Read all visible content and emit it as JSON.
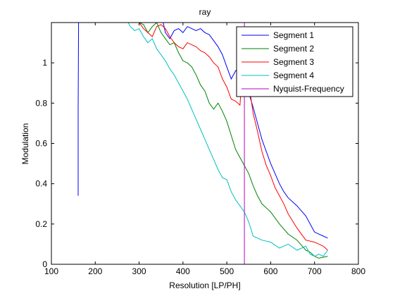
{
  "chart_data": {
    "type": "line",
    "title": "ray",
    "xlabel": "Resolution [LP/PH]",
    "ylabel": "Modulation",
    "xlim": [
      100,
      800
    ],
    "ylim": [
      0,
      1.2
    ],
    "xticks": [
      100,
      200,
      300,
      400,
      500,
      600,
      700,
      800
    ],
    "yticks": [
      0,
      0.2,
      0.4,
      0.6,
      0.8,
      1
    ],
    "grid": false,
    "legend_position": "top-right",
    "series": [
      {
        "name": "Segment 1",
        "color": "#0000ff",
        "points": [
          [
            161,
            0.34
          ],
          [
            161,
            0.77
          ],
          [
            162,
            1.2
          ],
          [
            355,
            1.2
          ],
          [
            360,
            1.15
          ],
          [
            370,
            1.12
          ],
          [
            380,
            1.16
          ],
          [
            390,
            1.17
          ],
          [
            400,
            1.15
          ],
          [
            410,
            1.18
          ],
          [
            420,
            1.17
          ],
          [
            430,
            1.16
          ],
          [
            440,
            1.17
          ],
          [
            450,
            1.15
          ],
          [
            460,
            1.14
          ],
          [
            470,
            1.11
          ],
          [
            480,
            1.08
          ],
          [
            490,
            1.04
          ],
          [
            500,
            0.98
          ],
          [
            510,
            0.92
          ],
          [
            520,
            0.96
          ],
          [
            530,
            0.98
          ],
          [
            540,
            0.92
          ],
          [
            550,
            0.85
          ],
          [
            560,
            0.78
          ],
          [
            570,
            0.7
          ],
          [
            580,
            0.62
          ],
          [
            590,
            0.56
          ],
          [
            600,
            0.5
          ],
          [
            610,
            0.45
          ],
          [
            620,
            0.4
          ],
          [
            630,
            0.36
          ],
          [
            640,
            0.33
          ],
          [
            660,
            0.29
          ],
          [
            680,
            0.24
          ],
          [
            700,
            0.16
          ],
          [
            720,
            0.14
          ],
          [
            730,
            0.13
          ]
        ]
      },
      {
        "name": "Segment 2",
        "color": "#008000",
        "points": [
          [
            270,
            1.2
          ],
          [
            300,
            1.2
          ],
          [
            310,
            1.19
          ],
          [
            320,
            1.15
          ],
          [
            330,
            1.18
          ],
          [
            340,
            1.2
          ],
          [
            350,
            1.15
          ],
          [
            360,
            1.12
          ],
          [
            370,
            1.09
          ],
          [
            380,
            1.1
          ],
          [
            390,
            1.05
          ],
          [
            400,
            1.01
          ],
          [
            410,
            1.0
          ],
          [
            420,
            0.98
          ],
          [
            430,
            0.94
          ],
          [
            440,
            0.89
          ],
          [
            450,
            0.86
          ],
          [
            460,
            0.8
          ],
          [
            470,
            0.77
          ],
          [
            480,
            0.8
          ],
          [
            490,
            0.76
          ],
          [
            500,
            0.71
          ],
          [
            510,
            0.64
          ],
          [
            520,
            0.57
          ],
          [
            530,
            0.53
          ],
          [
            540,
            0.49
          ],
          [
            550,
            0.45
          ],
          [
            560,
            0.39
          ],
          [
            570,
            0.34
          ],
          [
            580,
            0.3
          ],
          [
            600,
            0.26
          ],
          [
            620,
            0.2
          ],
          [
            640,
            0.15
          ],
          [
            660,
            0.12
          ],
          [
            680,
            0.07
          ],
          [
            690,
            0.06
          ],
          [
            700,
            0.04
          ],
          [
            710,
            0.03
          ],
          [
            730,
            0.04
          ]
        ]
      },
      {
        "name": "Segment 3",
        "color": "#ff0000",
        "points": [
          [
            300,
            1.2
          ],
          [
            310,
            1.17
          ],
          [
            320,
            1.15
          ],
          [
            330,
            1.13
          ],
          [
            340,
            1.18
          ],
          [
            350,
            1.19
          ],
          [
            360,
            1.17
          ],
          [
            370,
            1.13
          ],
          [
            380,
            1.1
          ],
          [
            390,
            1.08
          ],
          [
            400,
            1.07
          ],
          [
            410,
            1.1
          ],
          [
            420,
            1.09
          ],
          [
            430,
            1.08
          ],
          [
            440,
            1.06
          ],
          [
            450,
            1.05
          ],
          [
            460,
            1.03
          ],
          [
            470,
            1.0
          ],
          [
            480,
            0.98
          ],
          [
            490,
            0.92
          ],
          [
            500,
            0.88
          ],
          [
            510,
            0.82
          ],
          [
            520,
            0.81
          ],
          [
            530,
            0.79
          ],
          [
            540,
            1.1
          ],
          [
            550,
            0.9
          ],
          [
            560,
            0.75
          ],
          [
            570,
            0.66
          ],
          [
            580,
            0.56
          ],
          [
            590,
            0.49
          ],
          [
            600,
            0.44
          ],
          [
            610,
            0.38
          ],
          [
            620,
            0.34
          ],
          [
            630,
            0.3
          ],
          [
            640,
            0.25
          ],
          [
            660,
            0.18
          ],
          [
            680,
            0.12
          ],
          [
            700,
            0.11
          ],
          [
            720,
            0.09
          ],
          [
            730,
            0.07
          ]
        ]
      },
      {
        "name": "Segment 4",
        "color": "#00bfbf",
        "points": [
          [
            275,
            1.2
          ],
          [
            280,
            1.18
          ],
          [
            290,
            1.16
          ],
          [
            300,
            1.17
          ],
          [
            310,
            1.13
          ],
          [
            320,
            1.1
          ],
          [
            330,
            1.12
          ],
          [
            340,
            1.07
          ],
          [
            350,
            1.04
          ],
          [
            360,
            1.01
          ],
          [
            370,
            0.97
          ],
          [
            380,
            0.94
          ],
          [
            390,
            0.9
          ],
          [
            400,
            0.86
          ],
          [
            410,
            0.82
          ],
          [
            420,
            0.77
          ],
          [
            430,
            0.72
          ],
          [
            440,
            0.67
          ],
          [
            450,
            0.62
          ],
          [
            460,
            0.57
          ],
          [
            470,
            0.52
          ],
          [
            480,
            0.47
          ],
          [
            490,
            0.43
          ],
          [
            500,
            0.42
          ],
          [
            510,
            0.36
          ],
          [
            520,
            0.32
          ],
          [
            530,
            0.29
          ],
          [
            540,
            0.26
          ],
          [
            550,
            0.21
          ],
          [
            560,
            0.14
          ],
          [
            580,
            0.12
          ],
          [
            600,
            0.11
          ],
          [
            620,
            0.08
          ],
          [
            640,
            0.1
          ],
          [
            660,
            0.07
          ],
          [
            680,
            0.09
          ],
          [
            690,
            0.05
          ],
          [
            700,
            0.04
          ],
          [
            710,
            0.05
          ],
          [
            720,
            0.04
          ],
          [
            730,
            0.07
          ]
        ]
      },
      {
        "name": "Nyquist-Frequency",
        "color": "#bf00bf",
        "points": [
          [
            540,
            0
          ],
          [
            540,
            1.2
          ]
        ]
      }
    ]
  }
}
